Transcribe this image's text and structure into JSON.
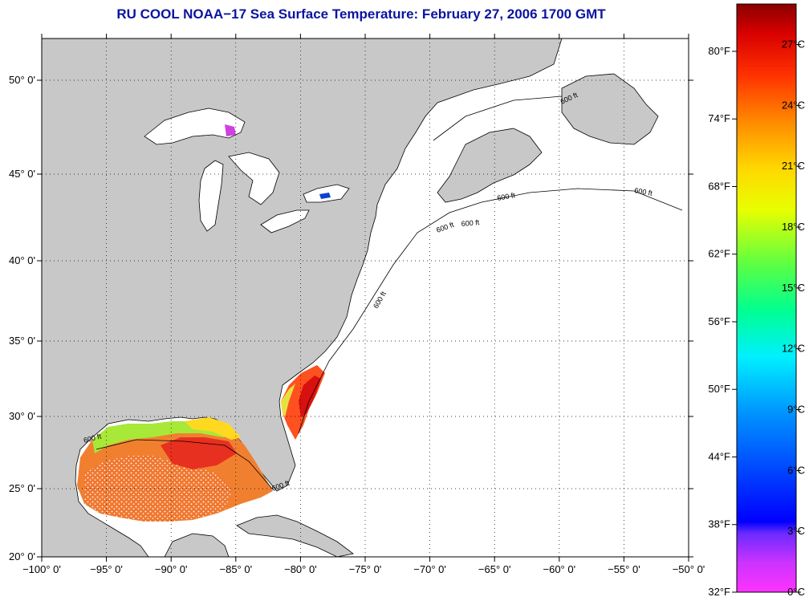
{
  "title": "RU COOL  NOAA−17  Sea Surface Temperature:  February 27, 2006 1700 GMT",
  "map": {
    "lon_ticks": [
      "−100° 0'",
      "−95° 0'",
      "−90° 0'",
      "−85° 0'",
      "−80° 0'",
      "−75° 0'",
      "−70° 0'",
      "−65° 0'",
      "−60° 0'",
      "−55° 0'",
      "−50° 0'"
    ],
    "lat_ticks": [
      "20° 0'",
      "25° 0'",
      "30° 0'",
      "35° 0'",
      "40° 0'",
      "45° 0'",
      "50° 0'"
    ],
    "lon_range": [
      -100,
      -50
    ],
    "lat_range": [
      20,
      52.5
    ],
    "isobath_labels": [
      "600 ft",
      "600 ft",
      "600 ft",
      "600 ft",
      "600 ft",
      "600 ft",
      "600 ft",
      "600 ft"
    ]
  },
  "colorbar": {
    "fahrenheit_labels": [
      "80°F",
      "74°F",
      "68°F",
      "62°F",
      "56°F",
      "50°F",
      "44°F",
      "38°F",
      "32°F"
    ],
    "fahrenheit_values": [
      80,
      74,
      68,
      62,
      56,
      50,
      44,
      38,
      32
    ],
    "celsius_labels": [
      "27°C",
      "24°C",
      "21°C",
      "18°C",
      "15°C",
      "12°C",
      "9°C",
      "6°C",
      "3°C",
      "0°C"
    ],
    "celsius_values": [
      27,
      24,
      21,
      18,
      15,
      12,
      9,
      6,
      3,
      0
    ],
    "range_celsius": [
      0,
      29
    ]
  },
  "colors": {
    "land": "#c8c8c8",
    "coast": "#000000",
    "title": "#0a14a0"
  }
}
